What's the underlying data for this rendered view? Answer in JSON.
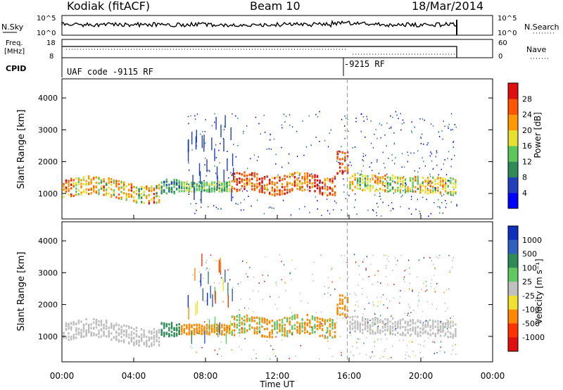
{
  "header": {
    "station": "Kodiak (fitACF)",
    "beam": "Beam 10",
    "date": "18/Mar/2014"
  },
  "top_panels": {
    "nsky_label": "N.Sky",
    "nsky_ticks": [
      "10^5",
      "10^0"
    ],
    "nsearch_label": "N.Search",
    "nsearch_ticks": [
      "10^5",
      "10^0"
    ],
    "freq_label_1": "Freq.",
    "freq_label_2": "[MHz]",
    "freq_ticks": [
      "18",
      "8"
    ],
    "nave_label": "Nave",
    "nave_ticks": [
      "60",
      "0"
    ],
    "cpid_label": "CPID",
    "cpid_entries": [
      {
        "text": "UAF code -9115 RF",
        "start_hour": 0
      },
      {
        "text": "-9215 RF",
        "start_hour": 15.9
      }
    ]
  },
  "chart_data": [
    {
      "type": "heatmap",
      "name": "power",
      "ylabel": "Slant Range [km]",
      "xlabel": "Time UT",
      "xlim": [
        0,
        24
      ],
      "ylim": [
        200,
        4600
      ],
      "x_ticks": [
        "00:00",
        "04:00",
        "08:00",
        "12:00",
        "16:00",
        "20:00",
        "00:00"
      ],
      "y_ticks": [
        1000,
        2000,
        3000,
        4000
      ],
      "colorbar_label": "Power [dB]",
      "colorbar_ticks": [
        4,
        8,
        12,
        16,
        20,
        24,
        28
      ],
      "colorbar_colors": [
        "#0000ff",
        "#2040c0",
        "#2e8b57",
        "#5cc85c",
        "#e8e030",
        "#ff9900",
        "#ff5500",
        "#e01010"
      ],
      "data_end_hour": 22
    },
    {
      "type": "heatmap",
      "name": "velocity",
      "ylabel": "Slant Range [km]",
      "xlabel": "Time UT",
      "xlim": [
        0,
        24
      ],
      "ylim": [
        200,
        4600
      ],
      "x_ticks": [
        "00:00",
        "04:00",
        "08:00",
        "12:00",
        "16:00",
        "20:00",
        "00:00"
      ],
      "y_ticks": [
        1000,
        2000,
        3000,
        4000
      ],
      "colorbar_label": "Velocity [m s⁻¹]",
      "colorbar_ticks": [
        1000,
        500,
        100,
        25,
        -25,
        -100,
        -500,
        -1000
      ],
      "colorbar_colors": [
        "#1030c0",
        "#3060c0",
        "#2e8b57",
        "#60c860",
        "#c0c0c0",
        "#f0e030",
        "#ff8800",
        "#ff3300",
        "#e01010"
      ],
      "data_end_hour": 22
    }
  ],
  "x_axis": {
    "ticks": [
      "00:00",
      "04:00",
      "08:00",
      "12:00",
      "16:00",
      "20:00",
      "00:00"
    ],
    "label": "Time UT"
  }
}
